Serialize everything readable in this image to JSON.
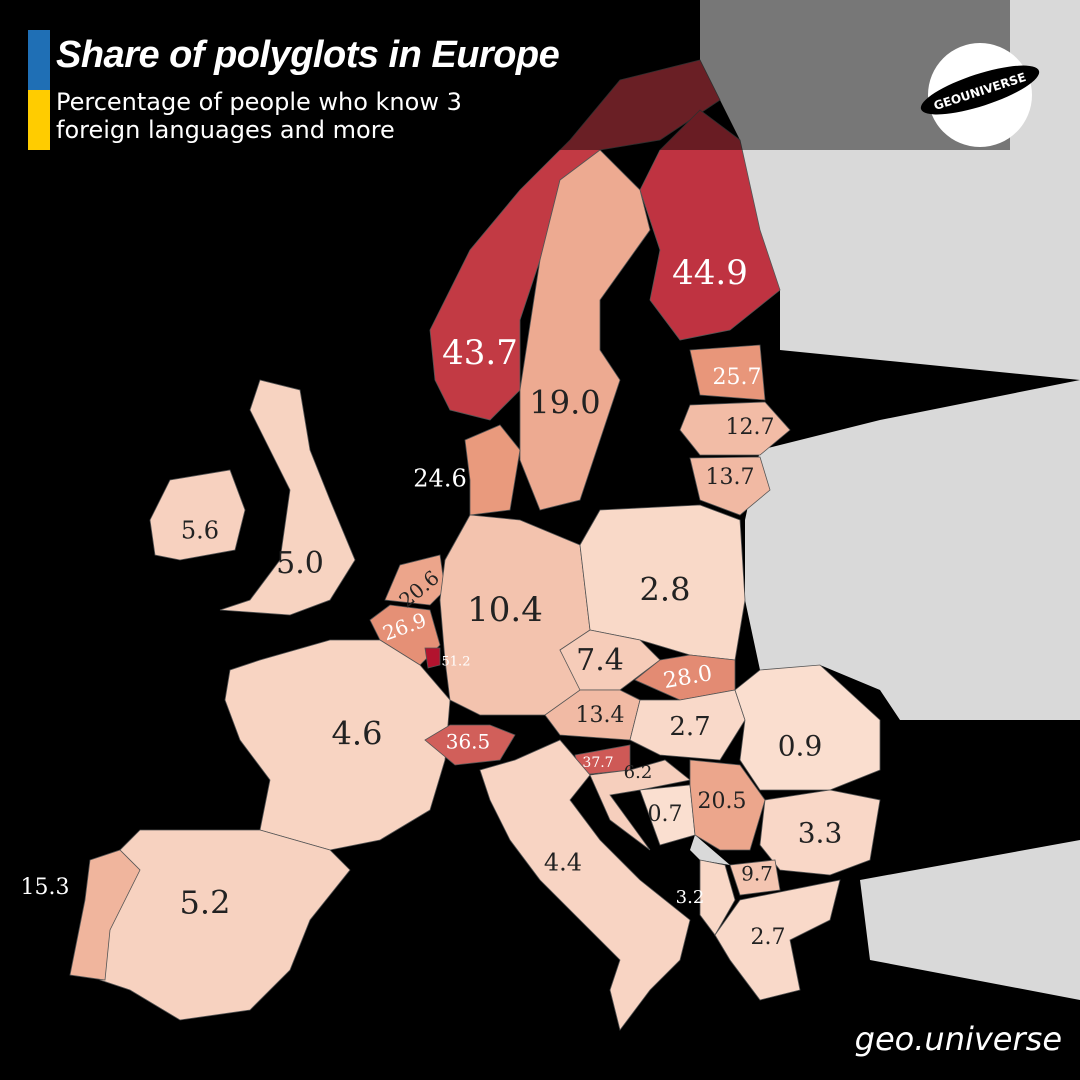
{
  "chart_data": {
    "type": "choropleth",
    "title": "Share of polyglots in Europe",
    "subtitle": "Percentage of people who know 3 foreign languages and more",
    "logo": "GEOUNIVERSE",
    "credit": "geo.universe",
    "colors": [
      "#fbe1d2",
      "#e8977a",
      "#b2132e"
    ],
    "values": [
      43.7,
      44.9,
      19.0,
      25.7,
      12.7,
      13.7,
      24.6,
      5.6,
      5.0,
      20.6,
      26.9,
      51.2,
      10.4,
      2.8,
      7.4,
      28.0,
      13.4,
      2.7,
      0.9,
      4.6,
      36.5,
      37.7,
      6.2,
      0.7,
      20.5,
      3.3,
      9.7,
      3.2,
      2.7,
      4.4,
      5.2,
      15.3
    ],
    "value_labels": [
      "43.7",
      "44.9",
      "19.0",
      "25.7",
      "12.7",
      "13.7",
      "24.6",
      "5.6",
      "5.0",
      "20.6",
      "26.9",
      "51.2",
      "10.4",
      "2.8",
      "7.4",
      "28.0",
      "13.4",
      "2.7",
      "0.9",
      "4.6",
      "36.5",
      "37.7",
      "6.2",
      "0.7",
      "20.5",
      "3.3",
      "9.7",
      "3.2",
      "2.7",
      "4.4",
      "5.2",
      "15.3"
    ]
  }
}
